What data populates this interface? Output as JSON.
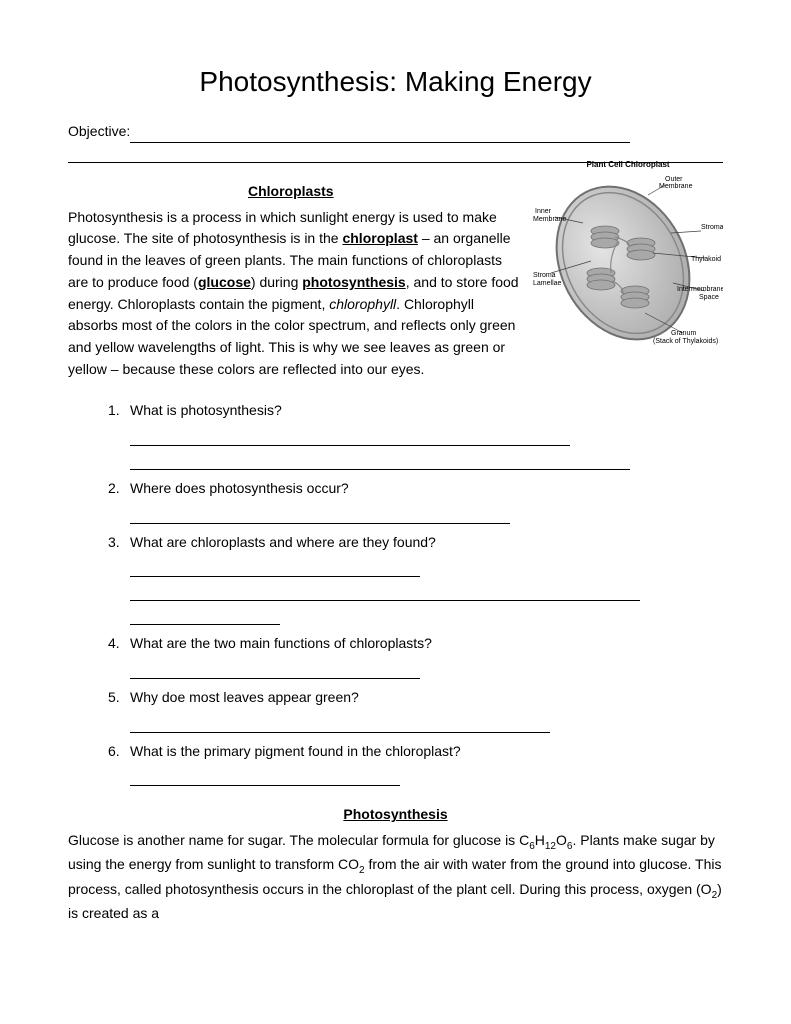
{
  "title": "Photosynthesis: Making Energy",
  "objective_label": "Objective:",
  "section1": {
    "heading": "Chloroplasts",
    "p1_a": "Photosynthesis is a process in which sunlight energy is used to make glucose. The site of photosynthesis is in the ",
    "p1_b": "chloroplast",
    "p1_c": " – an organelle found in the leaves of green plants. The main functions of chloroplasts are to produce food (",
    "p1_d": "glucose",
    "p1_e": ") during ",
    "p1_f": "photosynthesis",
    "p1_g": ", and to store food energy. Chloroplasts contain the pigment, ",
    "p1_h": "chlorophyll",
    "p1_i": ". Chlorophyll absorbs most of the colors in the color spectrum, and reflects only green and yellow wavelengths of light. This is why we see leaves as green or yellow – because these colors are reflected into our eyes."
  },
  "diagram": {
    "title": "Plant Cell Chloroplast",
    "labels": {
      "outer_membrane": "Outer\nMembrane",
      "inner_membrane": "Inner\nMembrane",
      "stroma_lamellae": "Stroma\nLamellae",
      "stroma": "Stroma",
      "thylakoid": "Thylakoid",
      "intermembrane": "Intermembrane\nSpace",
      "granum": "Granum\n(Stack of Thylakoids)"
    },
    "colors": {
      "body": "#c8c8c8",
      "body_light": "#dcdcdc",
      "stroke": "#606060",
      "thylakoid": "#a8a8a8"
    }
  },
  "questions": [
    {
      "num": "1.",
      "text": "What is photosynthesis?",
      "lines": [
        440,
        500
      ]
    },
    {
      "num": "2.",
      "text": "Where does photosynthesis occur?",
      "lines": [
        380
      ]
    },
    {
      "num": "3.",
      "text": "What are chloroplasts and where are they found?",
      "lines": [
        290,
        510,
        150
      ]
    },
    {
      "num": "4.",
      "text": "What are the two main functions of chloroplasts?",
      "lines": [
        290
      ]
    },
    {
      "num": "5.",
      "text": "Why doe most leaves appear green?",
      "lines": [
        420
      ]
    },
    {
      "num": "6.",
      "text": "What is the primary pigment found in the chloroplast?",
      "lines": [
        270
      ]
    }
  ],
  "section2": {
    "heading": "Photosynthesis",
    "p_a": "Glucose is another name for sugar. The molecular formula for glucose is C",
    "p_b": "H",
    "p_c": "O",
    "p_d": ". Plants make sugar by using the energy from sunlight to transform CO",
    "p_e": " from the air with water from the ground into glucose. This process, called photosynthesis occurs in the chloroplast of the plant cell. During this process, oxygen (O",
    "p_f": ") is created as a",
    "sub6": "6",
    "sub12": "12",
    "sub2": "2"
  }
}
